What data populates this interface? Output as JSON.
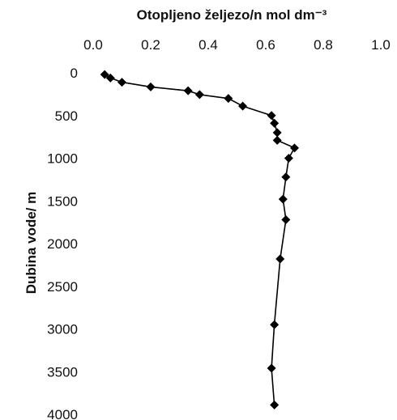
{
  "chart_data": {
    "type": "scatter",
    "title": "",
    "xlabel": "Otopljeno željezo/n mol dm⁻³",
    "ylabel": "Dubina vode/ m",
    "x_axis_position": "top",
    "y_axis_inverted": true,
    "xlim": [
      0.0,
      1.0
    ],
    "ylim": [
      0,
      4000
    ],
    "x_ticks": [
      "0.0",
      "0.2",
      "0.4",
      "0.6",
      "0.8",
      "1.0"
    ],
    "y_ticks": [
      "0",
      "500",
      "1000",
      "1500",
      "2000",
      "2500",
      "3000",
      "3500",
      "4000"
    ],
    "grid": false,
    "legend": "none",
    "marker": "diamond",
    "line": "connected",
    "series": [
      {
        "points": [
          {
            "x": 0.04,
            "y": 20
          },
          {
            "x": 0.06,
            "y": 60
          },
          {
            "x": 0.1,
            "y": 110
          },
          {
            "x": 0.2,
            "y": 165
          },
          {
            "x": 0.33,
            "y": 210
          },
          {
            "x": 0.37,
            "y": 255
          },
          {
            "x": 0.47,
            "y": 300
          },
          {
            "x": 0.52,
            "y": 390
          },
          {
            "x": 0.62,
            "y": 500
          },
          {
            "x": 0.63,
            "y": 590
          },
          {
            "x": 0.64,
            "y": 700
          },
          {
            "x": 0.64,
            "y": 790
          },
          {
            "x": 0.7,
            "y": 880
          },
          {
            "x": 0.68,
            "y": 1000
          },
          {
            "x": 0.67,
            "y": 1220
          },
          {
            "x": 0.66,
            "y": 1480
          },
          {
            "x": 0.67,
            "y": 1720
          },
          {
            "x": 0.65,
            "y": 2180
          },
          {
            "x": 0.63,
            "y": 2950
          },
          {
            "x": 0.62,
            "y": 3460
          },
          {
            "x": 0.63,
            "y": 3890
          }
        ]
      }
    ]
  },
  "style": {
    "line_color": "#000000",
    "marker_color": "#000000"
  }
}
